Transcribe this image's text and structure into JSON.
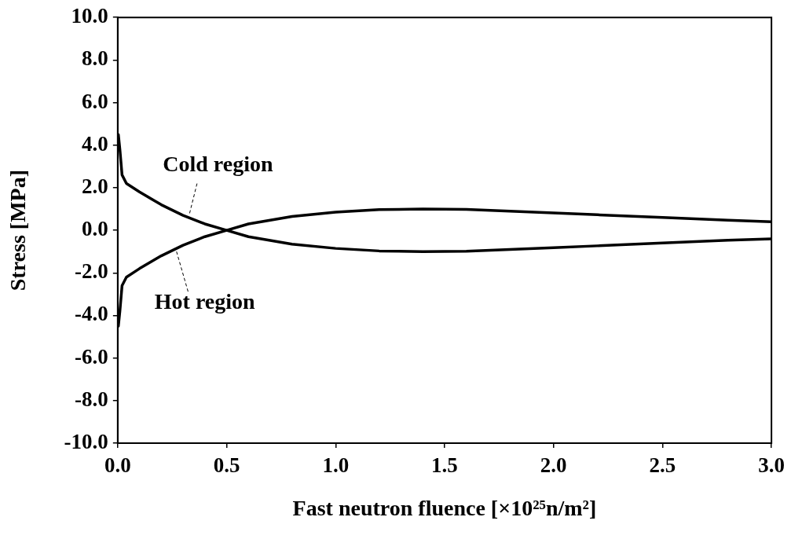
{
  "chart_data": {
    "type": "line",
    "xlabel": "Fast neutron fluence [×10²⁵n/m²]",
    "ylabel": "Stress [MPa]",
    "xlim": [
      0,
      3
    ],
    "xticks": [
      {
        "value": 0,
        "label": "0.0"
      },
      {
        "value": 0.5,
        "label": "0.5"
      },
      {
        "value": 1,
        "label": "1.0"
      },
      {
        "value": 1.5,
        "label": "1.5"
      },
      {
        "value": 2,
        "label": "2.0"
      },
      {
        "value": 2.5,
        "label": "2.5"
      },
      {
        "value": 3,
        "label": "3.0"
      }
    ],
    "ylim": [
      -10,
      10
    ],
    "yticks": [
      {
        "value": -10,
        "label": "-10.0"
      },
      {
        "value": -8,
        "label": "-8.0"
      },
      {
        "value": -6,
        "label": "-6.0"
      },
      {
        "value": -4,
        "label": "-4.0"
      },
      {
        "value": -2,
        "label": "-2.0"
      },
      {
        "value": 0,
        "label": "0.0"
      },
      {
        "value": 2,
        "label": "2.0"
      },
      {
        "value": 4,
        "label": "4.0"
      },
      {
        "value": 6,
        "label": "6.0"
      },
      {
        "value": 8,
        "label": "8.0"
      },
      {
        "value": 10,
        "label": "10.0"
      }
    ],
    "grid": false,
    "legend": false,
    "marker": "none",
    "line_style": "solid",
    "series": [
      {
        "color": "#000000",
        "x": [
          0.003,
          0.01,
          0.02,
          0.04,
          0.1,
          0.2,
          0.3,
          0.4,
          0.5,
          0.6,
          0.8,
          1.0,
          1.2,
          1.4,
          1.6,
          1.8,
          2.0,
          2.2,
          2.5,
          2.8,
          3.0
        ],
        "values": [
          4.5,
          3.8,
          2.6,
          2.2,
          1.8,
          1.2,
          0.7,
          0.3,
          0,
          -0.3,
          -0.65,
          -0.85,
          -0.97,
          -1.0,
          -0.98,
          -0.9,
          -0.82,
          -0.73,
          -0.6,
          -0.47,
          -0.4
        ]
      },
      {
        "color": "#000000",
        "x": [
          0.003,
          0.01,
          0.02,
          0.04,
          0.1,
          0.2,
          0.3,
          0.4,
          0.5,
          0.6,
          0.8,
          1.0,
          1.2,
          1.4,
          1.6,
          1.8,
          2.0,
          2.2,
          2.5,
          2.8,
          3.0
        ],
        "values": [
          -4.5,
          -3.8,
          -2.6,
          -2.2,
          -1.8,
          -1.2,
          -0.7,
          -0.3,
          0,
          0.3,
          0.65,
          0.85,
          0.97,
          1.0,
          0.98,
          0.9,
          0.82,
          0.73,
          0.6,
          0.47,
          0.4
        ]
      }
    ],
    "annotations": [
      {
        "text": "Cold region",
        "x": 0.33,
        "y": 0.8
      },
      {
        "text": "Hot region",
        "x": 0.27,
        "y": -1.0
      }
    ]
  }
}
